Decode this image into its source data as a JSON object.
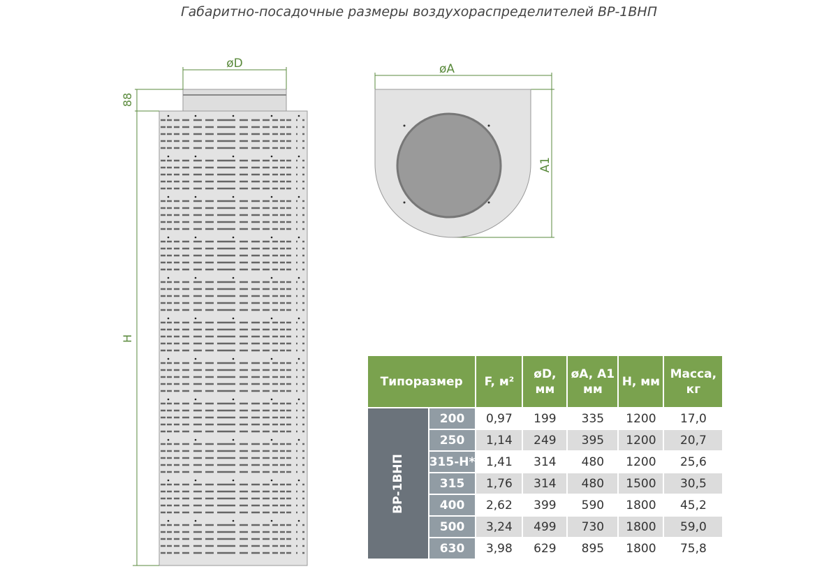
{
  "title": "Габаритно-посадочные размеры воздухораспределителей ВР-1ВНП",
  "drawing": {
    "dim_D": "øD",
    "dim_88": "88",
    "dim_H": "H",
    "dim_A": "øA",
    "dim_A1": "A1",
    "line_color": "#5a8a3c"
  },
  "table": {
    "headers": [
      "Типоразмер",
      "F, м²",
      "øD, мм",
      "øA, A1 мм",
      "H, мм",
      "Масса, кг"
    ],
    "group": "ВР-1ВНП",
    "rows": [
      [
        "200",
        "0,97",
        "199",
        "335",
        "1200",
        "17,0"
      ],
      [
        "250",
        "1,14",
        "249",
        "395",
        "1200",
        "20,7"
      ],
      [
        "315-Н*",
        "1,41",
        "314",
        "480",
        "1200",
        "25,6"
      ],
      [
        "315",
        "1,76",
        "314",
        "480",
        "1500",
        "30,5"
      ],
      [
        "400",
        "2,62",
        "399",
        "590",
        "1800",
        "45,2"
      ],
      [
        "500",
        "3,24",
        "499",
        "730",
        "1800",
        "59,0"
      ],
      [
        "630",
        "3,98",
        "629",
        "895",
        "1800",
        "75,8"
      ]
    ],
    "header_color": "#7aa24e",
    "size_color": "#919ca4",
    "group_color": "#6b737b"
  }
}
